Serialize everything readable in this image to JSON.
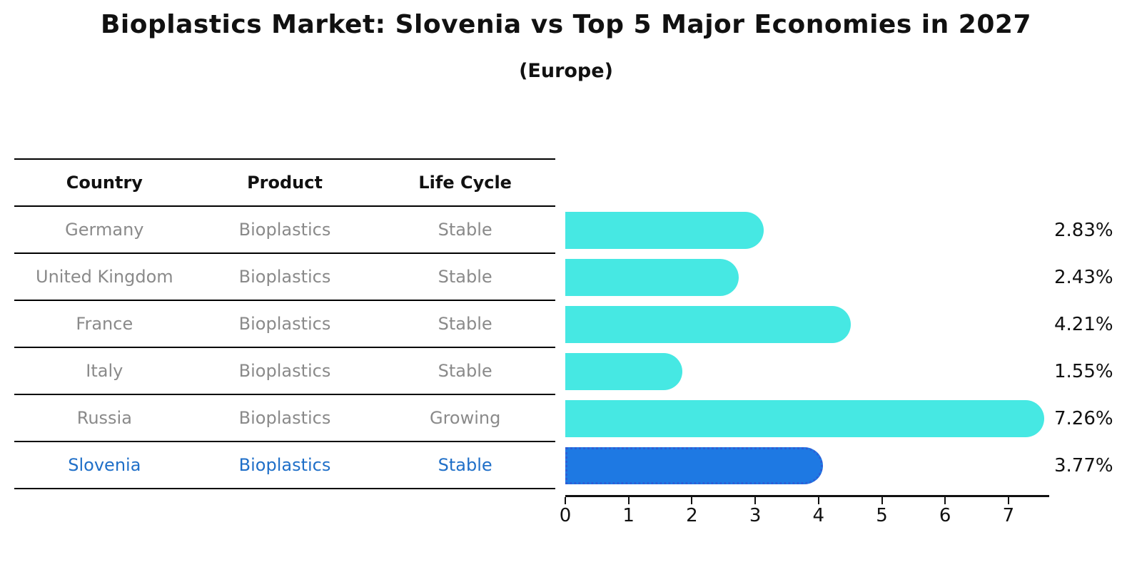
{
  "header": {
    "title": "Bioplastics Market: Slovenia vs Top 5 Major Economies in 2027",
    "subtitle": "(Europe)"
  },
  "table": {
    "columns": [
      "Country",
      "Product",
      "Life Cycle"
    ],
    "rows": [
      {
        "country": "Germany",
        "product": "Bioplastics",
        "life_cycle": "Stable",
        "highlight": false
      },
      {
        "country": "United Kingdom",
        "product": "Bioplastics",
        "life_cycle": "Stable",
        "highlight": false
      },
      {
        "country": "France",
        "product": "Bioplastics",
        "life_cycle": "Stable",
        "highlight": false
      },
      {
        "country": "Italy",
        "product": "Bioplastics",
        "life_cycle": "Stable",
        "highlight": false
      },
      {
        "country": "Russia",
        "product": "Bioplastics",
        "life_cycle": "Growing",
        "highlight": false
      },
      {
        "country": "Slovenia",
        "product": "Bioplastics",
        "life_cycle": "Stable",
        "highlight": true
      }
    ]
  },
  "chart_data": {
    "type": "bar",
    "orientation": "horizontal",
    "title": "Bioplastics Market: Slovenia vs Top 5 Major Economies in 2027",
    "subtitle": "(Europe)",
    "categories": [
      "Germany",
      "United Kingdom",
      "France",
      "Italy",
      "Russia",
      "Slovenia"
    ],
    "values": [
      2.83,
      2.43,
      4.21,
      1.55,
      7.26,
      3.77
    ],
    "value_labels": [
      "2.83%",
      "2.43%",
      "4.21%",
      "1.55%",
      "7.26%",
      "3.77%"
    ],
    "x_ticks": [
      0,
      1,
      2,
      3,
      4,
      5,
      6,
      7
    ],
    "xlim": [
      0,
      7.65
    ],
    "grid": false,
    "legend": false,
    "highlight_index": 5
  },
  "colors": {
    "bar_cyan": "#46e8e3",
    "bar_blue": "#1e79e3",
    "bar_blue_dot_border": "#2d5ed6",
    "highlight_text_blue": "#1f6fc8",
    "table_text_gray": "#8a8a8a",
    "text_black": "#111111",
    "background": "#ffffff"
  }
}
